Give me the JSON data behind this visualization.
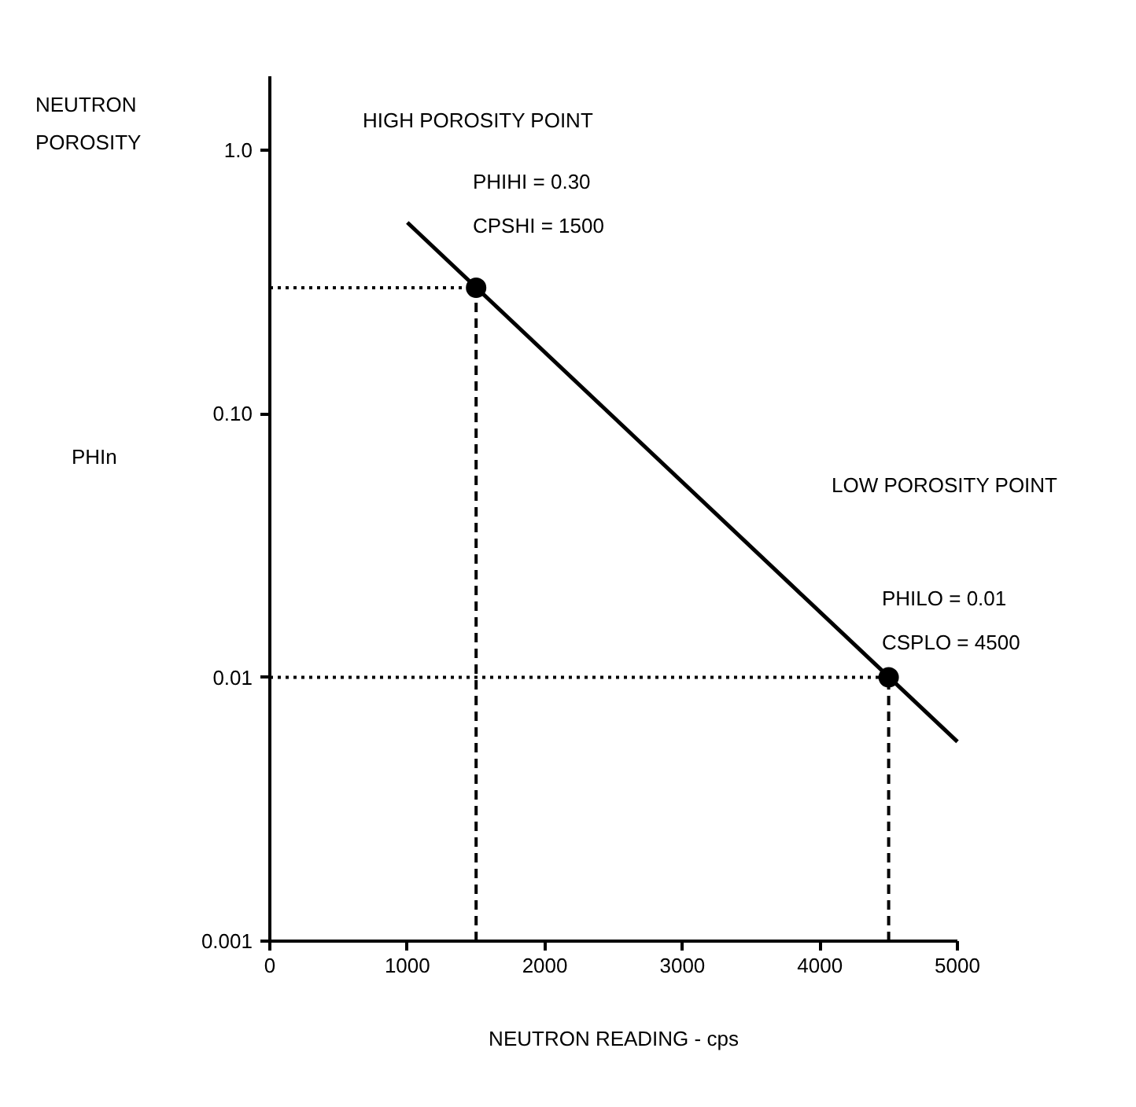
{
  "chart_data": {
    "type": "line",
    "xlabel": "NEUTRON READING - cps",
    "ylabel": "NEUTRON POROSITY",
    "log": "y",
    "grid": false,
    "xlim": [
      0,
      5000
    ],
    "xticks": [
      0,
      1000,
      2000,
      3000,
      4000,
      5000
    ],
    "ylim": [
      0.001,
      1.9
    ],
    "yticks": [
      {
        "value": 1,
        "label": "1.0"
      },
      {
        "value": 0.1,
        "label": "0.10"
      },
      {
        "value": 0.01,
        "label": "0.01"
      },
      {
        "value": 0.001,
        "label": "0.001"
      }
    ],
    "series": [
      {
        "color": "#000000",
        "x": [
          1000,
          5000
        ],
        "values": [
          0.53,
          0.0057
        ],
        "line_style": "solid"
      },
      {
        "color": "#000000",
        "x": [
          0,
          1500
        ],
        "values": [
          0.3,
          0.3
        ],
        "line_style": "dotted"
      },
      {
        "color": "#000000",
        "x": [
          1500,
          1500
        ],
        "values": [
          0.001,
          0.3
        ],
        "line_style": "dashed"
      },
      {
        "color": "#000000",
        "x": [
          0,
          4500
        ],
        "values": [
          0.01,
          0.01
        ],
        "line_style": "dotted"
      },
      {
        "color": "#000000",
        "x": [
          4500,
          4500
        ],
        "values": [
          0.001,
          0.01
        ],
        "line_style": "dashed"
      },
      {
        "type": "scatter",
        "marker": "circle",
        "color": "#000000",
        "x": [
          1500,
          4500
        ],
        "values": [
          0.3,
          0.01
        ]
      }
    ],
    "annotations": [
      "PHIn",
      "HIGH POROSITY POINT",
      "PHIHI = 0.30",
      "CPSHI = 1500",
      "LOW POROSITY POINT",
      "PHILO = 0.01",
      "CSPLO = 4500"
    ]
  }
}
